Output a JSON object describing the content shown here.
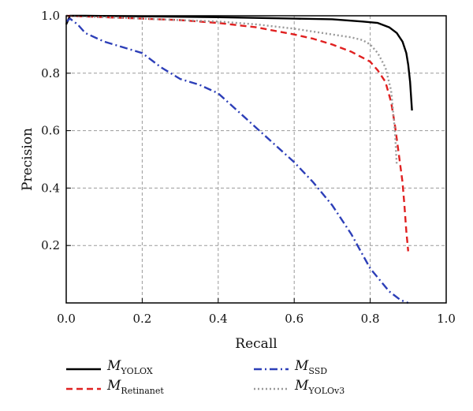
{
  "chart_data": {
    "type": "line",
    "xlabel": "Recall",
    "ylabel": "Precision",
    "xlim": [
      0.0,
      1.0
    ],
    "ylim": [
      0.0,
      1.0
    ],
    "xticks": [
      "0.0",
      "0.2",
      "0.4",
      "0.6",
      "0.8",
      "1.0"
    ],
    "yticks": [
      "0.2",
      "0.4",
      "0.6",
      "0.8",
      "1.0"
    ],
    "grid": true,
    "legend_position": "bottom",
    "series": [
      {
        "name": "YOLOX",
        "label_main": "M",
        "label_sub": "YOLOX",
        "color": "#000000",
        "dash": "solid",
        "points": [
          [
            0.0,
            0.97
          ],
          [
            0.01,
            1.0
          ],
          [
            0.05,
            1.0
          ],
          [
            0.2,
            0.998
          ],
          [
            0.4,
            0.995
          ],
          [
            0.6,
            0.99
          ],
          [
            0.7,
            0.988
          ],
          [
            0.78,
            0.98
          ],
          [
            0.82,
            0.975
          ],
          [
            0.85,
            0.96
          ],
          [
            0.87,
            0.94
          ],
          [
            0.885,
            0.91
          ],
          [
            0.895,
            0.87
          ],
          [
            0.9,
            0.83
          ],
          [
            0.905,
            0.77
          ],
          [
            0.91,
            0.67
          ]
        ]
      },
      {
        "name": "Retinanet",
        "label_main": "M",
        "label_sub": "Retinanet",
        "color": "#e02020",
        "dash": "dashed",
        "points": [
          [
            0.0,
            1.0
          ],
          [
            0.1,
            0.995
          ],
          [
            0.2,
            0.99
          ],
          [
            0.3,
            0.985
          ],
          [
            0.4,
            0.975
          ],
          [
            0.5,
            0.96
          ],
          [
            0.6,
            0.935
          ],
          [
            0.65,
            0.92
          ],
          [
            0.7,
            0.9
          ],
          [
            0.75,
            0.875
          ],
          [
            0.8,
            0.84
          ],
          [
            0.82,
            0.81
          ],
          [
            0.84,
            0.77
          ],
          [
            0.855,
            0.7
          ],
          [
            0.865,
            0.62
          ],
          [
            0.875,
            0.52
          ],
          [
            0.885,
            0.42
          ],
          [
            0.89,
            0.34
          ],
          [
            0.895,
            0.25
          ],
          [
            0.9,
            0.18
          ]
        ]
      },
      {
        "name": "SSD",
        "label_main": "M",
        "label_sub": "SSD",
        "color": "#2d3fb8",
        "dash": "dashdot",
        "points": [
          [
            0.0,
            0.98
          ],
          [
            0.01,
            0.99
          ],
          [
            0.02,
            0.98
          ],
          [
            0.03,
            0.97
          ],
          [
            0.05,
            0.94
          ],
          [
            0.1,
            0.91
          ],
          [
            0.15,
            0.89
          ],
          [
            0.2,
            0.87
          ],
          [
            0.25,
            0.82
          ],
          [
            0.3,
            0.78
          ],
          [
            0.35,
            0.76
          ],
          [
            0.4,
            0.73
          ],
          [
            0.45,
            0.67
          ],
          [
            0.5,
            0.61
          ],
          [
            0.55,
            0.55
          ],
          [
            0.6,
            0.49
          ],
          [
            0.65,
            0.42
          ],
          [
            0.7,
            0.34
          ],
          [
            0.75,
            0.24
          ],
          [
            0.8,
            0.12
          ],
          [
            0.85,
            0.04
          ],
          [
            0.88,
            0.01
          ],
          [
            0.9,
            0.0
          ]
        ]
      },
      {
        "name": "YOLOv3",
        "label_main": "M",
        "label_sub": "YOLOv3",
        "color": "#999999",
        "dash": "dotted",
        "points": [
          [
            0.0,
            1.0
          ],
          [
            0.1,
            0.995
          ],
          [
            0.2,
            0.99
          ],
          [
            0.3,
            0.985
          ],
          [
            0.4,
            0.98
          ],
          [
            0.5,
            0.97
          ],
          [
            0.6,
            0.955
          ],
          [
            0.65,
            0.945
          ],
          [
            0.7,
            0.935
          ],
          [
            0.75,
            0.925
          ],
          [
            0.78,
            0.915
          ],
          [
            0.8,
            0.9
          ],
          [
            0.82,
            0.87
          ],
          [
            0.84,
            0.82
          ],
          [
            0.855,
            0.74
          ],
          [
            0.865,
            0.6
          ],
          [
            0.87,
            0.48
          ]
        ]
      }
    ]
  }
}
